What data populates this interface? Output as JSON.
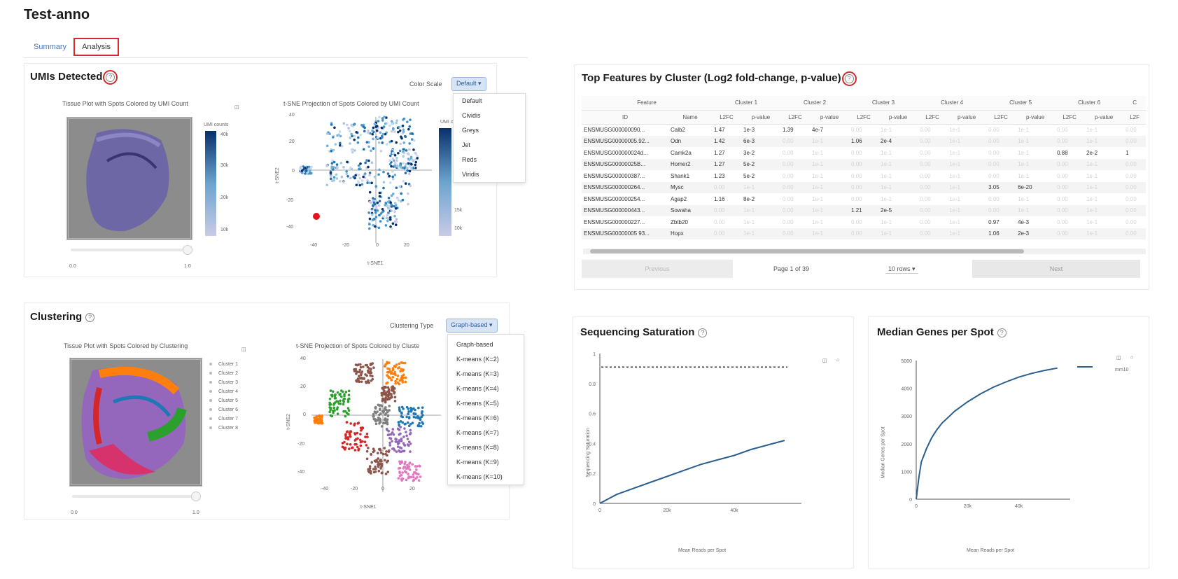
{
  "page": {
    "title": "Test-anno"
  },
  "tabs": [
    {
      "label": "Summary"
    },
    {
      "label": "Analysis"
    }
  ],
  "umi": {
    "title": "UMIs Detected",
    "help": "?",
    "color_scale_label": "Color Scale",
    "color_scale_value": "Default ▾",
    "color_scale_options": [
      "Default",
      "Cividis",
      "Greys",
      "Jet",
      "Reds",
      "Viridis"
    ],
    "tissue_title": "Tissue Plot with Spots Colored by UMI Count",
    "legend_title": "UMI counts",
    "legend_ticks": [
      "40k",
      "30k",
      "20k",
      "10k"
    ],
    "slider_min": "0.0",
    "slider_max": "1.0",
    "tsne_title": "t-SNE Projection of Spots Colored by UMI Count",
    "tsne_right_label": "UMI co",
    "tsne_right_ticks": [
      "15k",
      "10k"
    ],
    "tsne_xlabel": "t-SNE1",
    "tsne_ylabel": "t-SNE2",
    "tsne_xticks": [
      "-40",
      "-20",
      "0",
      "20"
    ],
    "tsne_yticks": [
      "40",
      "20",
      "0",
      "-20",
      "-40"
    ],
    "colors": {
      "low": "#c9cbe6",
      "high": "#08306b"
    }
  },
  "clustering": {
    "title": "Clustering",
    "help": "?",
    "type_label": "Clustering Type",
    "type_value": "Graph-based ▾",
    "type_options": [
      "Graph-based",
      "K-means (K=2)",
      "K-means (K=3)",
      "K-means (K=4)",
      "K-means (K=5)",
      "K-means (K=6)",
      "K-means (K=7)",
      "K-means (K=8)",
      "K-means (K=9)",
      "K-means (K=10)"
    ],
    "tissue_title": "Tissue Plot with Spots Colored by Clustering",
    "legend": [
      "Cluster 1",
      "Cluster 2",
      "Cluster 3",
      "Cluster 4",
      "Cluster 5",
      "Cluster 6",
      "Cluster 7",
      "Cluster 8"
    ],
    "slider_min": "0.0",
    "slider_max": "1.0",
    "tsne_title": "t-SNE Projection of Spots Colored by Cluste",
    "tsne_xlabel": "t-SNE1",
    "tsne_ylabel": "t-SNE2",
    "tsne_xticks": [
      "-40",
      "-20",
      "0",
      "20"
    ],
    "tsne_yticks": [
      "40",
      "20",
      "0",
      "-20",
      "-40"
    ],
    "cluster_colors": [
      "#1f77b4",
      "#ff7f0e",
      "#2ca02c",
      "#d62728",
      "#9467bd",
      "#8c564b",
      "#e377c2",
      "#7f7f7f"
    ]
  },
  "features": {
    "title": "Top Features by Cluster (Log2 fold-change, p-value)",
    "help": "?",
    "group_headers": [
      "Feature",
      "Cluster 1",
      "Cluster 2",
      "Cluster 3",
      "Cluster 4",
      "Cluster 5",
      "Cluster 6",
      "C"
    ],
    "sub_headers": [
      "ID",
      "Name",
      "L2FC",
      "p-value",
      "L2FC",
      "p-value",
      "L2FC",
      "p-value",
      "L2FC",
      "p-value",
      "L2FC",
      "p-value",
      "L2FC",
      "p-value",
      "L2F"
    ],
    "rows": [
      [
        "ENSMUSG000000090...",
        "Calb2",
        "1.47",
        "1e-3",
        "1.39",
        "4e-7",
        "",
        "",
        "",
        "",
        "",
        "",
        "",
        "",
        ""
      ],
      [
        "ENSMUSG00000005.92...",
        "Odn",
        "1.42",
        "6e-3",
        "",
        "",
        "1.06",
        "2e-4",
        "",
        "",
        "",
        "",
        "",
        "",
        ""
      ],
      [
        "ENSMUSG000000024d...",
        "Camk2a",
        "1.27",
        "3e-2",
        "",
        "",
        "",
        "",
        "",
        "",
        "",
        "",
        "0.88",
        "2e-2",
        "1"
      ],
      [
        "ENSMUSG00000025B...",
        "Homer2",
        "1.27",
        "5e-2",
        "",
        "",
        "",
        "",
        "",
        "",
        "",
        "",
        "",
        "",
        ""
      ],
      [
        "ENSMUSG000000387...",
        "Shank1",
        "1.23",
        "5e-2",
        "",
        "",
        "",
        "",
        "",
        "",
        "",
        "",
        "",
        "",
        ""
      ],
      [
        "ENSMUSG000000264...",
        "Mysc",
        "",
        "",
        "",
        "",
        "",
        "",
        "",
        "",
        "3.05",
        "6e-20",
        "",
        "",
        ""
      ],
      [
        "ENSMUSG000000254...",
        "Agap2",
        "1.16",
        "8e-2",
        "",
        "",
        "",
        "",
        "",
        "",
        "",
        "",
        "",
        "",
        ""
      ],
      [
        "ENSMUSG000000443...",
        "Sowaha",
        "",
        "",
        "",
        "",
        "1.21",
        "2e-5",
        "",
        "",
        "",
        "",
        "",
        "",
        ""
      ],
      [
        "ENSMUSG000000227...",
        "Zbtb20",
        "",
        "",
        "",
        "",
        "",
        "",
        "",
        "",
        "0.97",
        "4e-3",
        "",
        "",
        ""
      ],
      [
        "ENSMUSG00000005 93...",
        "Hopx",
        "",
        "",
        "",
        "",
        "",
        "",
        "",
        "",
        "1.06",
        "2e-3",
        "",
        "",
        ""
      ]
    ],
    "faded_value": "0.00",
    "faded_p": "1e-1",
    "prev_label": "Previous",
    "page_label": "Page 1 of 39",
    "rows_select": "10 rows ▾",
    "next_label": "Next"
  },
  "saturation": {
    "title": "Sequencing Saturation",
    "help": "?",
    "xlabel": "Mean Reads per Spot",
    "ylabel": "Sequencing Saturation",
    "xticks": [
      "0",
      "20k",
      "40k"
    ],
    "yticks": [
      "1",
      "0.8",
      "0.6",
      "0.4",
      "0.2",
      "0"
    ],
    "line_color": "#2a5f8e"
  },
  "median_genes": {
    "title": "Median Genes per Spot",
    "help": "?",
    "xlabel": "Mean Reads per Spot",
    "ylabel": "Median Genes per Spot",
    "xticks": [
      "0",
      "20k",
      "40k"
    ],
    "yticks": [
      "5000",
      "4000",
      "3000",
      "2000",
      "1000",
      "0"
    ],
    "legend": "mm10",
    "line_color": "#2a5f8e"
  },
  "chart_data": [
    {
      "type": "line",
      "title": "Sequencing Saturation",
      "xlabel": "Mean Reads per Spot",
      "ylabel": "Sequencing Saturation",
      "xlim": [
        0,
        60000
      ],
      "ylim": [
        0,
        1
      ],
      "x": [
        0,
        5000,
        10000,
        15000,
        20000,
        25000,
        30000,
        35000,
        40000,
        45000,
        50000,
        55000
      ],
      "y": [
        0,
        0.06,
        0.1,
        0.14,
        0.18,
        0.22,
        0.26,
        0.29,
        0.32,
        0.36,
        0.39,
        0.42
      ],
      "reference_line_y": 0.91
    },
    {
      "type": "line",
      "title": "Median Genes per Spot",
      "xlabel": "Mean Reads per Spot",
      "ylabel": "Median Genes per Spot",
      "xlim": [
        0,
        60000
      ],
      "ylim": [
        0,
        5200
      ],
      "series": [
        {
          "name": "mm10",
          "x": [
            0,
            1000,
            2000,
            4000,
            6000,
            8000,
            10000,
            15000,
            20000,
            25000,
            30000,
            35000,
            40000,
            45000,
            50000,
            55000
          ],
          "y": [
            0,
            800,
            1400,
            1900,
            2300,
            2600,
            2850,
            3300,
            3650,
            3950,
            4200,
            4400,
            4580,
            4720,
            4830,
            4920
          ]
        }
      ]
    }
  ]
}
